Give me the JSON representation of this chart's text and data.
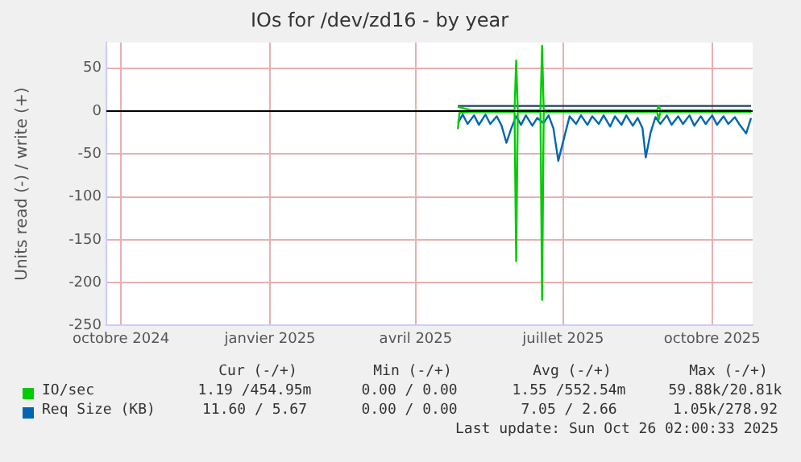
{
  "chart_data": {
    "type": "line",
    "title": "IOs for /dev/zd16 - by year",
    "ylabel": "Units read (-) / write (+)",
    "xlim": [
      "2024-09-22",
      "2025-10-26"
    ],
    "xticks": [
      {
        "value": "2024-10-01",
        "label": "octobre 2024"
      },
      {
        "value": "2025-01-01",
        "label": "janvier 2025"
      },
      {
        "value": "2025-04-01",
        "label": "avril 2025"
      },
      {
        "value": "2025-07-01",
        "label": "juillet 2025"
      },
      {
        "value": "2025-10-01",
        "label": "octobre 2025"
      }
    ],
    "ylim": [
      -250,
      80
    ],
    "yticks": [
      -250,
      -200,
      -150,
      -100,
      -50,
      0,
      50
    ],
    "grid": true,
    "legend": "bottom",
    "marker": "none",
    "line_style": "solid",
    "series": [
      {
        "name": "IO/sec",
        "color": "#00cc00",
        "x": [
          "2025-04-27",
          "2025-05-05",
          "2025-05-15",
          "2025-05-25",
          "2025-06-01",
          "2025-06-02",
          "2025-06-03",
          "2025-06-17",
          "2025-06-18",
          "2025-06-19",
          "2025-07-01",
          "2025-07-20",
          "2025-08-10",
          "2025-08-28",
          "2025-08-29",
          "2025-08-30",
          "2025-09-15",
          "2025-10-01",
          "2025-10-25"
        ],
        "values": [
          5,
          1,
          1,
          1,
          1,
          59,
          1,
          1,
          76,
          1,
          1,
          1,
          1,
          1,
          6,
          1,
          1,
          1,
          1
        ]
      },
      {
        "color": "#00cc00",
        "x": [
          "2025-04-27",
          "2025-04-28",
          "2025-05-05",
          "2025-05-15",
          "2025-05-25",
          "2025-06-01",
          "2025-06-02",
          "2025-06-03",
          "2025-06-17",
          "2025-06-18",
          "2025-06-19",
          "2025-07-01",
          "2025-07-20",
          "2025-08-10",
          "2025-08-28",
          "2025-08-29",
          "2025-08-30",
          "2025-09-15",
          "2025-10-01",
          "2025-10-25"
        ],
        "values": [
          -21,
          -2,
          -1,
          -1,
          -1,
          -1,
          -175,
          -1,
          -1,
          -220,
          -1,
          -1,
          -1,
          -1,
          -1,
          -10,
          -1,
          -1,
          -1,
          -1
        ]
      },
      {
        "color": "#1f3f66",
        "x": [
          "2025-04-27",
          "2025-05-15",
          "2025-06-15",
          "2025-07-15",
          "2025-08-15",
          "2025-09-15",
          "2025-10-25"
        ],
        "values": [
          6,
          6,
          6,
          6,
          6,
          6,
          6
        ]
      },
      {
        "name": "Req Size (KB)",
        "color": "#0066b3",
        "x": [
          "2025-04-27",
          "2025-04-30",
          "2025-05-03",
          "2025-05-07",
          "2025-05-10",
          "2025-05-14",
          "2025-05-17",
          "2025-05-21",
          "2025-05-24",
          "2025-05-27",
          "2025-05-30",
          "2025-06-02",
          "2025-06-05",
          "2025-06-08",
          "2025-06-12",
          "2025-06-15",
          "2025-06-19",
          "2025-06-22",
          "2025-06-25",
          "2025-06-28",
          "2025-07-02",
          "2025-07-05",
          "2025-07-09",
          "2025-07-12",
          "2025-07-16",
          "2025-07-19",
          "2025-07-23",
          "2025-07-26",
          "2025-07-30",
          "2025-08-02",
          "2025-08-06",
          "2025-08-09",
          "2025-08-13",
          "2025-08-16",
          "2025-08-19",
          "2025-08-21",
          "2025-08-24",
          "2025-08-27",
          "2025-08-30",
          "2025-09-03",
          "2025-09-06",
          "2025-09-10",
          "2025-09-13",
          "2025-09-17",
          "2025-09-20",
          "2025-09-24",
          "2025-09-27",
          "2025-10-01",
          "2025-10-04",
          "2025-10-08",
          "2025-10-11",
          "2025-10-15",
          "2025-10-18",
          "2025-10-22",
          "2025-10-25"
        ],
        "values": [
          -14,
          -4,
          -15,
          -5,
          -16,
          -4,
          -15,
          -6,
          -17,
          -37,
          -20,
          -6,
          -16,
          -5,
          -17,
          -8,
          -14,
          -5,
          -20,
          -58,
          -28,
          -6,
          -15,
          -5,
          -16,
          -6,
          -15,
          -5,
          -18,
          -6,
          -16,
          -5,
          -17,
          -8,
          -20,
          -54,
          -25,
          -7,
          -15,
          -5,
          -16,
          -6,
          -15,
          -5,
          -17,
          -6,
          -15,
          -5,
          -16,
          -6,
          -15,
          -7,
          -16,
          -26,
          -8
        ]
      }
    ],
    "annotations": [
      "Cur (-/+)",
      "Min (-/+)",
      "Avg (-/+)",
      "Max (-/+)",
      "1.19 /454.95m",
      "0.00 / 0.00",
      "1.55 /552.54m",
      "59.88k/20.81k",
      "11.60 / 5.67",
      "0.00 / 0.00",
      "7.05 / 2.66",
      "1.05k/278.92",
      "Last update: Sun Oct 26 02:00:33 2025"
    ]
  }
}
